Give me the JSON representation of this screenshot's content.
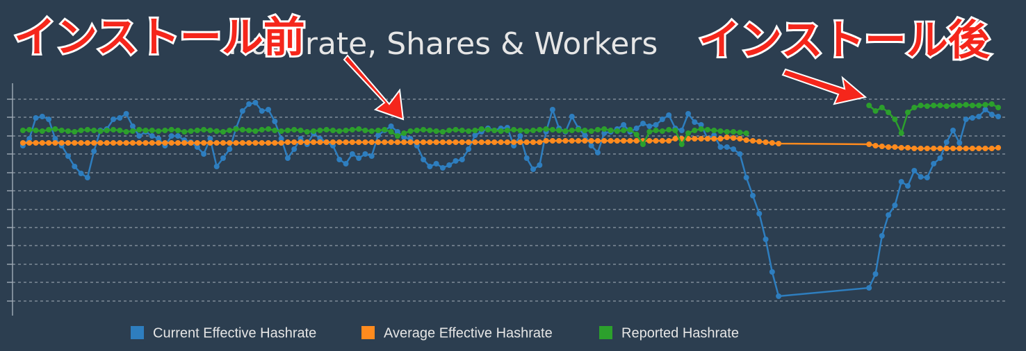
{
  "chart_data": {
    "type": "line",
    "title": "Hashrate, Shares & Workers",
    "annotations": [
      "インストール前",
      "インストール後"
    ],
    "legend": "bottom",
    "grid": true,
    "xlim": [
      -1.5,
      152.5
    ],
    "ylim": [
      0,
      340
    ],
    "yticks": [
      26,
      53,
      79,
      106,
      132,
      158,
      185,
      211,
      238,
      264,
      291,
      317
    ],
    "x": [
      0,
      1,
      2,
      3,
      4,
      5,
      6,
      7,
      8,
      9,
      10,
      11,
      12,
      13,
      14,
      15,
      16,
      17,
      18,
      19,
      20,
      21,
      22,
      23,
      24,
      25,
      26,
      27,
      28,
      29,
      30,
      31,
      32,
      33,
      34,
      35,
      36,
      37,
      38,
      39,
      40,
      41,
      42,
      43,
      44,
      45,
      46,
      47,
      48,
      49,
      50,
      51,
      52,
      53,
      54,
      55,
      56,
      57,
      58,
      59,
      60,
      61,
      62,
      63,
      64,
      65,
      66,
      67,
      68,
      69,
      70,
      71,
      72,
      73,
      74,
      75,
      76,
      77,
      78,
      79,
      80,
      81,
      82,
      83,
      84,
      85,
      86,
      87,
      88,
      89,
      90,
      91,
      92,
      93,
      94,
      95,
      96,
      97,
      98,
      99,
      100,
      101,
      102,
      103,
      104,
      105,
      106,
      107,
      108,
      109,
      110,
      111,
      112,
      113,
      114,
      115,
      116,
      117,
      131,
      132,
      133,
      134,
      135,
      136,
      137,
      138,
      139,
      140,
      141,
      142,
      143,
      144,
      145,
      146,
      147,
      148,
      149,
      150,
      151
    ],
    "series": [
      {
        "name": "Current Effective Hashrate",
        "color": "#2e7ebf",
        "values": [
          250,
          260,
          290,
          292,
          288,
          260,
          250,
          235,
          220,
          210,
          204,
          242,
          272,
          274,
          288,
          290,
          296,
          278,
          264,
          270,
          264,
          260,
          250,
          264,
          264,
          258,
          255,
          248,
          238,
          260,
          220,
          232,
          245,
          275,
          300,
          310,
          312,
          300,
          302,
          285,
          260,
          232,
          245,
          260,
          252,
          268,
          260,
          255,
          250,
          230,
          224,
          238,
          232,
          238,
          235,
          265,
          272,
          278,
          270,
          262,
          260,
          250,
          230,
          220,
          224,
          218,
          222,
          228,
          230,
          245,
          265,
          270,
          275,
          272,
          275,
          276,
          250,
          264,
          232,
          216,
          222,
          270,
          302,
          275,
          270,
          292,
          275,
          265,
          250,
          240,
          268,
          270,
          274,
          280,
          270,
          275,
          282,
          278,
          280,
          288,
          294,
          275,
          272,
          296,
          284,
          280,
          260,
          265,
          248,
          248,
          245,
          238,
          204,
          178,
          152,
          115,
          68,
          33,
          45,
          65,
          120,
          150,
          164,
          198,
          192,
          214,
          205,
          204,
          224,
          232,
          255,
          272,
          254,
          288,
          290,
          292,
          302,
          295,
          292
        ]
      },
      {
        "name": "Average Effective Hashrate",
        "color": "#ff8b1e",
        "values": [
          254,
          254,
          254,
          254,
          254,
          254,
          254,
          254,
          254,
          254,
          254,
          254,
          254,
          254,
          254,
          254,
          254,
          254,
          254,
          254,
          254,
          254,
          254,
          254,
          254,
          254,
          254,
          254,
          254,
          254,
          254,
          254,
          254,
          254,
          254,
          254,
          254,
          254,
          254,
          254,
          254,
          255,
          255,
          255,
          255,
          255,
          255,
          255,
          255,
          255,
          255,
          255,
          255,
          255,
          255,
          255,
          255,
          255,
          255,
          255,
          255,
          255,
          255,
          255,
          255,
          255,
          255,
          255,
          255,
          255,
          255,
          255,
          255,
          255,
          255,
          255,
          255,
          255,
          255,
          255,
          255,
          257,
          257,
          257,
          257,
          257,
          257,
          257,
          257,
          257,
          257,
          257,
          257,
          257,
          257,
          257,
          257,
          257,
          257,
          257,
          257,
          260,
          260,
          260,
          260,
          260,
          260,
          260,
          260,
          262,
          261,
          260,
          258,
          257,
          256,
          255,
          254,
          253,
          252,
          250,
          249,
          248,
          248,
          247,
          247,
          246,
          246,
          246,
          246,
          246,
          246,
          246,
          246,
          246,
          246,
          246,
          246,
          246,
          247
        ]
      },
      {
        "name": "Reported Hashrate",
        "color": "#2ca02c",
        "values": [
          272,
          273,
          272,
          271,
          273,
          274,
          272,
          271,
          270,
          272,
          273,
          272,
          271,
          272,
          273,
          272,
          270,
          271,
          273,
          272,
          272,
          271,
          272,
          273,
          272,
          270,
          271,
          272,
          273,
          272,
          271,
          270,
          272,
          274,
          273,
          272,
          271,
          273,
          274,
          272,
          271,
          272,
          273,
          272,
          270,
          271,
          272,
          273,
          272,
          271,
          272,
          273,
          274,
          272,
          271,
          272,
          273,
          270,
          264,
          268,
          271,
          272,
          273,
          272,
          271,
          270,
          272,
          273,
          272,
          271,
          272,
          274,
          273,
          272,
          271,
          272,
          273,
          272,
          271,
          272,
          273,
          274,
          273,
          272,
          271,
          272,
          273,
          272,
          271,
          273,
          274,
          272,
          271,
          272,
          273,
          266,
          252,
          270,
          272,
          271,
          273,
          272,
          252,
          268,
          272,
          274,
          273,
          272,
          271,
          270,
          270,
          269,
          268,
          null,
          null,
          null,
          null,
          null,
          308,
          300,
          305,
          298,
          288,
          268,
          298,
          305,
          308,
          307,
          308,
          308,
          307,
          308,
          308,
          309,
          308,
          308,
          309,
          310,
          305
        ]
      }
    ]
  }
}
